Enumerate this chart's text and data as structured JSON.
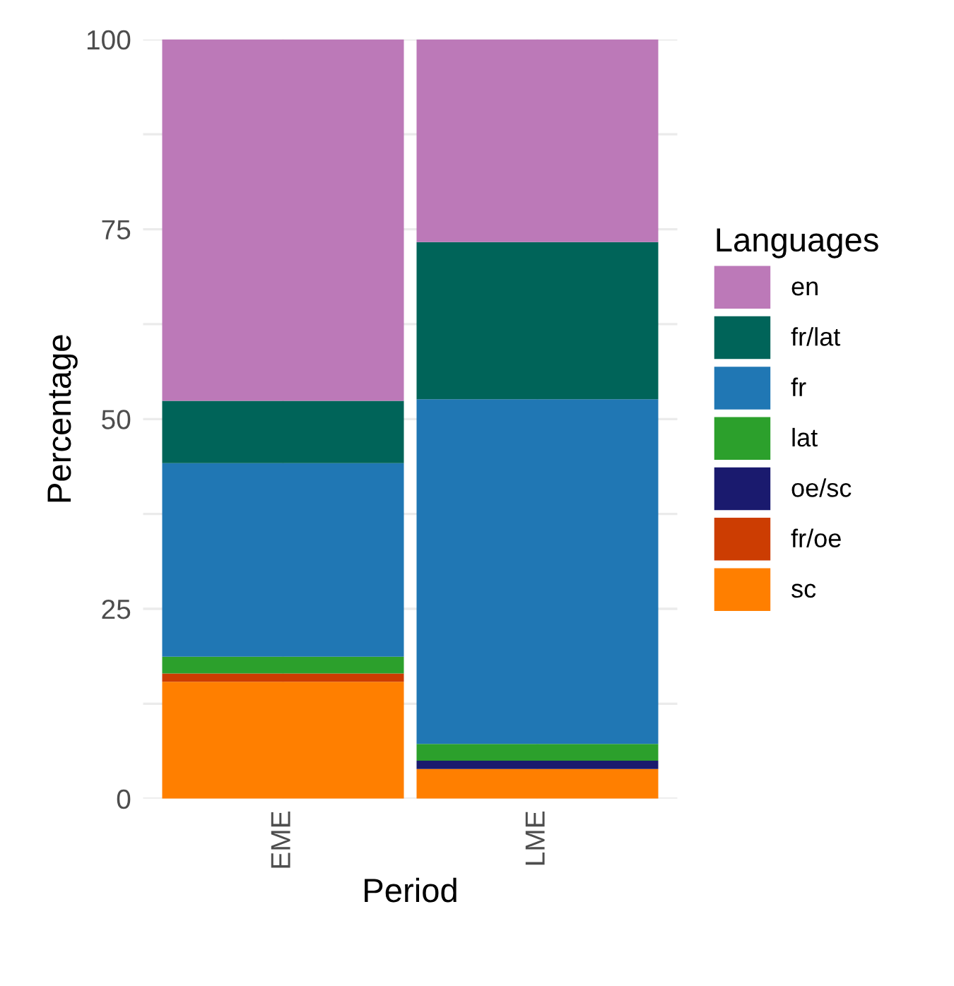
{
  "chart_data": {
    "type": "bar",
    "stacked": true,
    "xlabel": "Period",
    "ylabel": "Percentage",
    "legend_title": "Languages",
    "legend": "right",
    "grid": true,
    "categories": [
      "EME",
      "LME"
    ],
    "series": [
      {
        "name": "sc",
        "color": "#ff7f00",
        "values": [
          15.4,
          3.9
        ]
      },
      {
        "name": "fr/oe",
        "color": "#cc3d02",
        "values": [
          1.1,
          0
        ]
      },
      {
        "name": "oe/sc",
        "color": "#1a1a6e",
        "values": [
          0,
          1.1
        ]
      },
      {
        "name": "lat",
        "color": "#2ca02c",
        "values": [
          2.2,
          2.2
        ]
      },
      {
        "name": "fr",
        "color": "#2077b4",
        "values": [
          25.5,
          45.4
        ]
      },
      {
        "name": "fr/lat",
        "color": "#006459",
        "values": [
          8.2,
          20.7
        ]
      },
      {
        "name": "en",
        "color": "#bc79b8",
        "values": [
          47.6,
          26.7
        ]
      }
    ],
    "ylim": [
      0,
      100
    ],
    "yticks": [
      0,
      25,
      50,
      75,
      100
    ]
  }
}
